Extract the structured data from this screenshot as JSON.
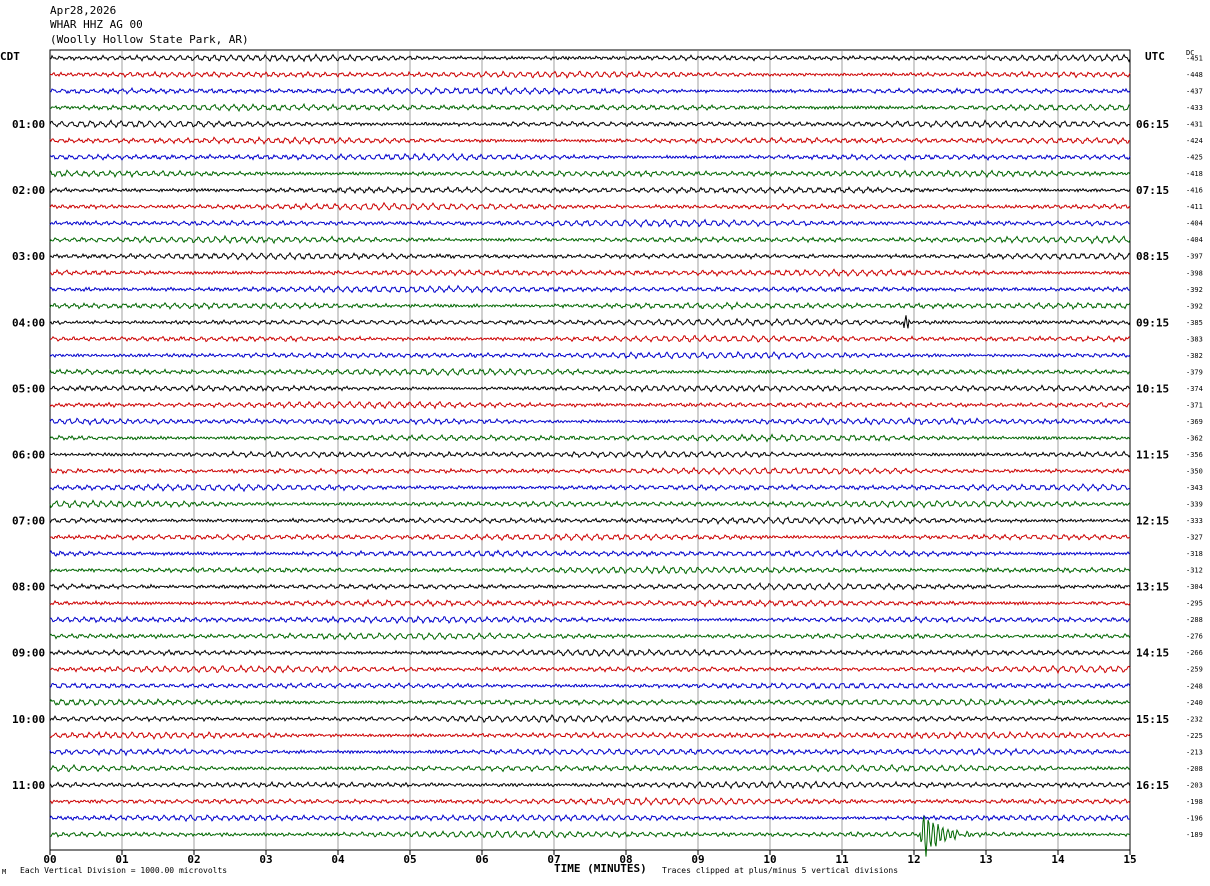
{
  "header": {
    "date": "Apr28,2026",
    "station": "WHAR HHZ AG 00",
    "location": "(Woolly Hollow State Park, AR)"
  },
  "left_timezone": "CDT",
  "right_timezone": "UTC",
  "dc_label": "DC",
  "footer": {
    "mark": "M",
    "scale": "Each Vertical Division = 1000.00 microvolts",
    "axis_title": "TIME (MINUTES)",
    "clip": "Traces clipped at plus/minus 5 vertical divisions"
  },
  "chart_data": {
    "type": "line",
    "title": "",
    "xlabel": "TIME (MINUTES)",
    "xlim": [
      0,
      15
    ],
    "x_ticks": [
      "00",
      "01",
      "02",
      "03",
      "04",
      "05",
      "06",
      "07",
      "08",
      "09",
      "10",
      "11",
      "12",
      "13",
      "14",
      "15"
    ],
    "trace_colors": [
      "#000000",
      "#cc0000",
      "#0000cc",
      "#006600"
    ],
    "left_hour_labels": [
      "01:00",
      "02:00",
      "03:00",
      "04:00",
      "05:00",
      "06:00",
      "07:00",
      "08:00",
      "09:00",
      "10:00",
      "11:00"
    ],
    "right_hour_labels": [
      "06:15",
      "07:15",
      "08:15",
      "09:15",
      "10:15",
      "11:15",
      "12:15",
      "13:15",
      "14:15",
      "15:15",
      "16:15"
    ],
    "dc_offsets": [
      -451,
      -448,
      -437,
      -433,
      -431,
      -424,
      -425,
      -418,
      -416,
      -411,
      -404,
      -404,
      -397,
      -398,
      -392,
      -392,
      -385,
      -383,
      -382,
      -379,
      -374,
      -371,
      -369,
      -362,
      -356,
      -350,
      -343,
      -339,
      -333,
      -327,
      -318,
      -312,
      -304,
      -295,
      -288,
      -276,
      -266,
      -259,
      -248,
      -240,
      -232,
      -225,
      -213,
      -208,
      -203,
      -198,
      -196,
      -189
    ],
    "events": [
      {
        "trace_index": 16,
        "minute": 11.9,
        "amplitude": "small"
      },
      {
        "trace_index": 47,
        "minute": 12.15,
        "amplitude": "large"
      }
    ]
  }
}
